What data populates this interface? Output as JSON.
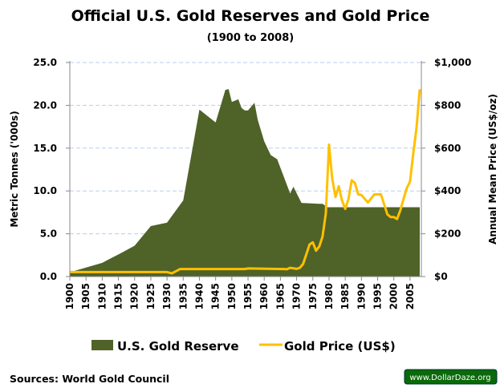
{
  "chart_data": {
    "type": "area+line",
    "title": "Official U.S. Gold Reserves and Gold Price",
    "subtitle": "(1900 to 2008)",
    "ylabel": "Metric Tonnes ('000s)",
    "ylabel_right": "Annual Mean Price (US$/oz)",
    "xlim": [
      1900,
      2008
    ],
    "ylim": [
      0,
      25
    ],
    "ylim_right": [
      0,
      1000
    ],
    "x_ticks": [
      "1900",
      "1905",
      "1910",
      "1915",
      "1920",
      "1925",
      "1930",
      "1935",
      "1940",
      "1945",
      "1950",
      "1955",
      "1960",
      "1965",
      "1970",
      "1975",
      "1980",
      "1985",
      "1990",
      "1995",
      "2000",
      "2005"
    ],
    "y_ticks": [
      "0.0",
      "5.0",
      "10.0",
      "15.0",
      "20.0",
      "25.0"
    ],
    "y_ticks_right": [
      "$0",
      "$200",
      "$400",
      "$600",
      "$800",
      "$1,000"
    ],
    "grid": true,
    "legend_position": "bottom",
    "series": [
      {
        "name": "U.S. Gold Reserve",
        "type": "area",
        "axis": "left",
        "color": "#4f6228",
        "x": [
          1900,
          1910,
          1913,
          1915.6,
          1920,
          1925,
          1930,
          1935,
          1940,
          1945,
          1948,
          1949,
          1950,
          1952,
          1953,
          1954,
          1955,
          1957,
          1958,
          1960,
          1962,
          1964,
          1966,
          1968,
          1969,
          1971.5,
          1977,
          1978,
          1979.5,
          2008
        ],
        "y": [
          0.5,
          1.6,
          2.2,
          2.7,
          3.6,
          5.9,
          6.3,
          8.9,
          19.5,
          18.0,
          21.8,
          21.9,
          20.4,
          20.7,
          19.7,
          19.4,
          19.4,
          20.3,
          18.3,
          15.8,
          14.2,
          13.7,
          11.7,
          9.7,
          10.5,
          8.6,
          8.5,
          8.5,
          8.1,
          8.1
        ]
      },
      {
        "name": "Gold Price (US$)",
        "type": "line",
        "axis": "right",
        "color": "#ffc000",
        "x": [
          1900,
          1930,
          1931.5,
          1934,
          1954,
          1955,
          1966,
          1967,
          1968,
          1970,
          1971,
          1972,
          1974,
          1975,
          1976,
          1977,
          1978,
          1979,
          1980,
          1981,
          1982,
          1983,
          1984,
          1985,
          1986,
          1987,
          1988,
          1989,
          1990,
          1992,
          1994,
          1996,
          1998,
          1999,
          2000,
          2001,
          2002,
          2003,
          2004,
          2005,
          2006,
          2007,
          2008
        ],
        "y": [
          21,
          21,
          15,
          35,
          35,
          38,
          35,
          34,
          41,
          36,
          41,
          59,
          150,
          160,
          121,
          141,
          187,
          294,
          616,
          456,
          372,
          422,
          356,
          316,
          362,
          450,
          437,
          384,
          381,
          346,
          384,
          385,
          291,
          278,
          278,
          269,
          309,
          363,
          413,
          444,
          575,
          694,
          875
        ]
      }
    ],
    "source": "Sources: World Gold Council",
    "watermark": "www.DollarDaze.org"
  }
}
